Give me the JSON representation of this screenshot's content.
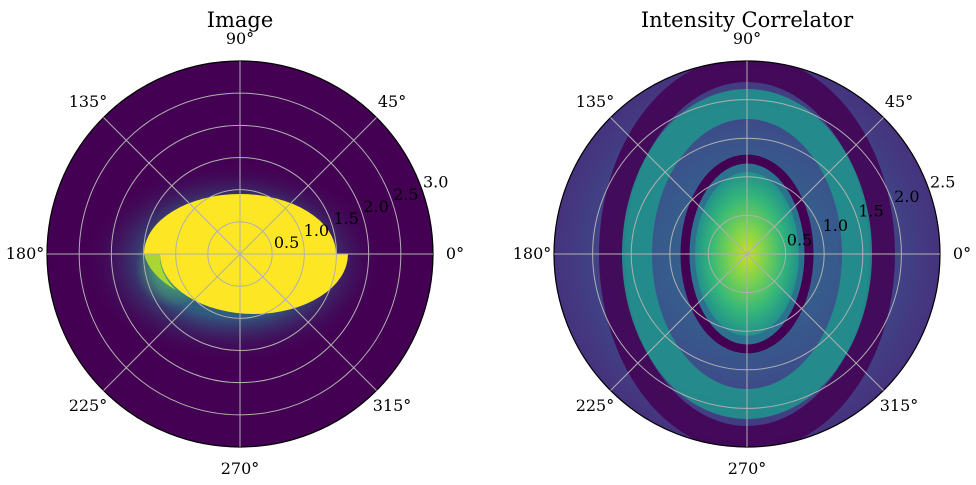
{
  "chart_data": [
    {
      "type": "heatmap",
      "projection": "polar",
      "title": "Image",
      "angle_ticks": [
        "0°",
        "45°",
        "90°",
        "135°",
        "180°",
        "225°",
        "270°",
        "315°"
      ],
      "radial_ticks": [
        "0.5",
        "1.0",
        "1.5",
        "2.0",
        "2.5",
        "3.0"
      ],
      "radial_tick_values": [
        0.5,
        1.0,
        1.5,
        2.0,
        2.5,
        3.0
      ],
      "rlim": [
        0,
        3.0
      ],
      "colormap": "viridis",
      "grid": true,
      "features": [
        {
          "kind": "saturated-region",
          "shape": "half-disc (top) + offset half-disc (bottom)",
          "center_x": 0.0,
          "center_y": 0.0,
          "radius_x": 1.5,
          "radius_y": 0.95,
          "value": 1.0
        },
        {
          "kind": "glow",
          "center_x": -0.15,
          "center_y": -0.1,
          "radius_x": 1.9,
          "radius_y": 1.4,
          "value": 0.4
        }
      ]
    },
    {
      "type": "heatmap",
      "projection": "polar",
      "title": "Intensity Correlator",
      "angle_ticks": [
        "0°",
        "45°",
        "90°",
        "135°",
        "180°",
        "225°",
        "270°",
        "315°"
      ],
      "radial_ticks": [
        "0.5",
        "1.0",
        "1.5",
        "2.0",
        "2.5"
      ],
      "radial_tick_values": [
        0.5,
        1.0,
        1.5,
        2.0,
        2.5
      ],
      "rlim": [
        0,
        2.5
      ],
      "colormap": "viridis",
      "grid": true,
      "features": [
        {
          "kind": "central-peak",
          "radius_x": 0.55,
          "radius_y": 0.85,
          "value": 0.85
        },
        {
          "kind": "dark-ring",
          "radius_x": 0.8,
          "radius_y": 1.25,
          "value": 0.0
        },
        {
          "kind": "bright-ring",
          "radius_x": 1.1,
          "radius_y": 1.7,
          "value": 0.45
        },
        {
          "kind": "dark-ring",
          "radius_x": 1.65,
          "radius_y": 2.4,
          "value": 0.05
        }
      ]
    }
  ],
  "colors": {
    "viridis_low": "#440154",
    "viridis_mid": "#21918c",
    "viridis_high": "#fde725",
    "grid": "#b0b0b0"
  }
}
